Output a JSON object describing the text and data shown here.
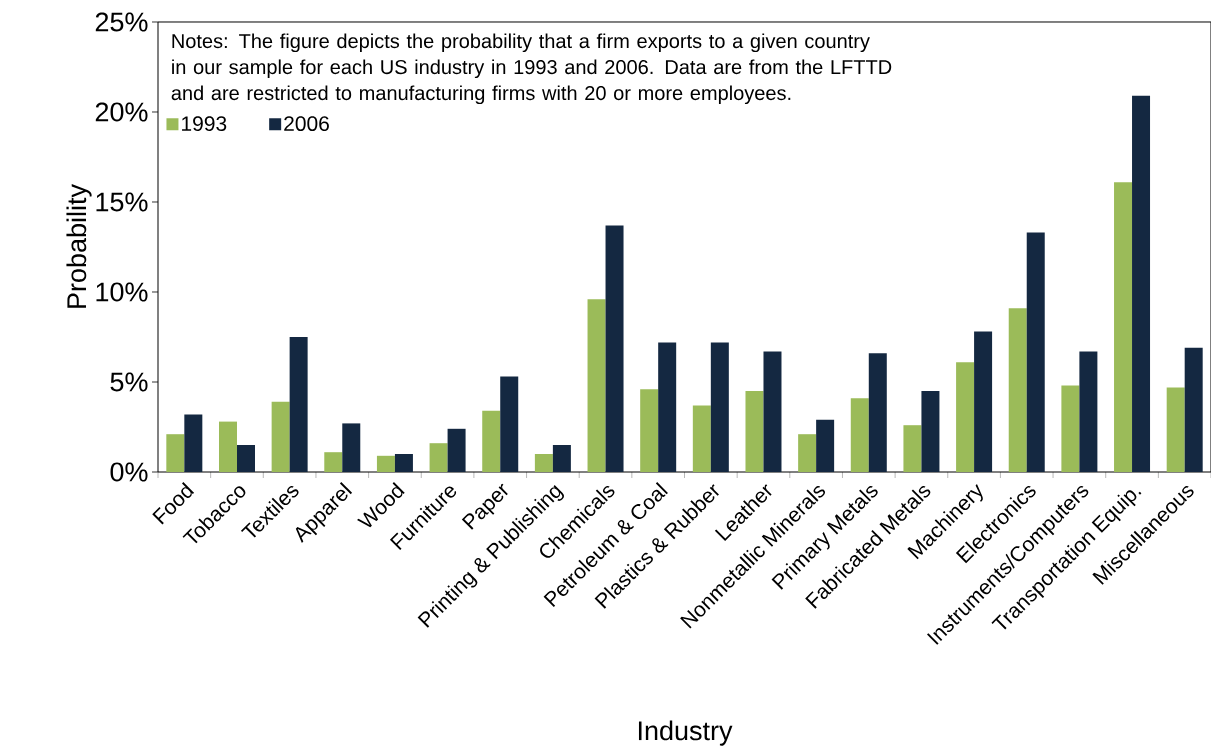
{
  "chart_data": {
    "type": "bar",
    "xlabel": "Industry",
    "ylabel": "Probability",
    "categories": [
      "Food",
      "Tobacco",
      "Textiles",
      "Apparel",
      "Wood",
      "Furniture",
      "Paper",
      "Printing & Publishing",
      "Chemicals",
      "Petroleum & Coal",
      "Plastics & Rubber",
      "Leather",
      "Nonmetallic Minerals",
      "Primary Metals",
      "Fabricated Metals",
      "Machinery",
      "Electronics",
      "Instruments/Computers",
      "Transportation Equip.",
      "Miscellaneous"
    ],
    "series": [
      {
        "name": "1993",
        "color": "#9bbb59",
        "values": [
          2.1,
          2.8,
          3.9,
          1.1,
          0.9,
          1.6,
          3.4,
          1.0,
          9.6,
          4.6,
          3.7,
          4.5,
          2.1,
          4.1,
          2.6,
          6.1,
          9.1,
          4.8,
          16.1,
          4.7
        ]
      },
      {
        "name": "2006",
        "color": "#142841",
        "values": [
          3.2,
          1.5,
          7.5,
          2.7,
          1.0,
          2.4,
          5.3,
          1.5,
          13.7,
          7.2,
          7.2,
          6.7,
          2.9,
          6.6,
          4.5,
          7.8,
          13.3,
          6.7,
          20.9,
          6.9
        ]
      }
    ],
    "ylim": [
      0,
      25
    ],
    "yticks": [
      {
        "value": 0,
        "label": "0%"
      },
      {
        "value": 5,
        "label": "5%"
      },
      {
        "value": 10,
        "label": "10%"
      },
      {
        "value": 15,
        "label": "15%"
      },
      {
        "value": 20,
        "label": "20%"
      },
      {
        "value": 25,
        "label": "25%"
      }
    ],
    "annotations": [
      "Notes: The figure depicts the probability that a firm exports to a given country in our sample for each US industry in 1993 and 2006.  Data are from the LFTTD and are restricted to manufacturing firms with 20 or more employees."
    ],
    "legend": "top left",
    "grid": false
  }
}
